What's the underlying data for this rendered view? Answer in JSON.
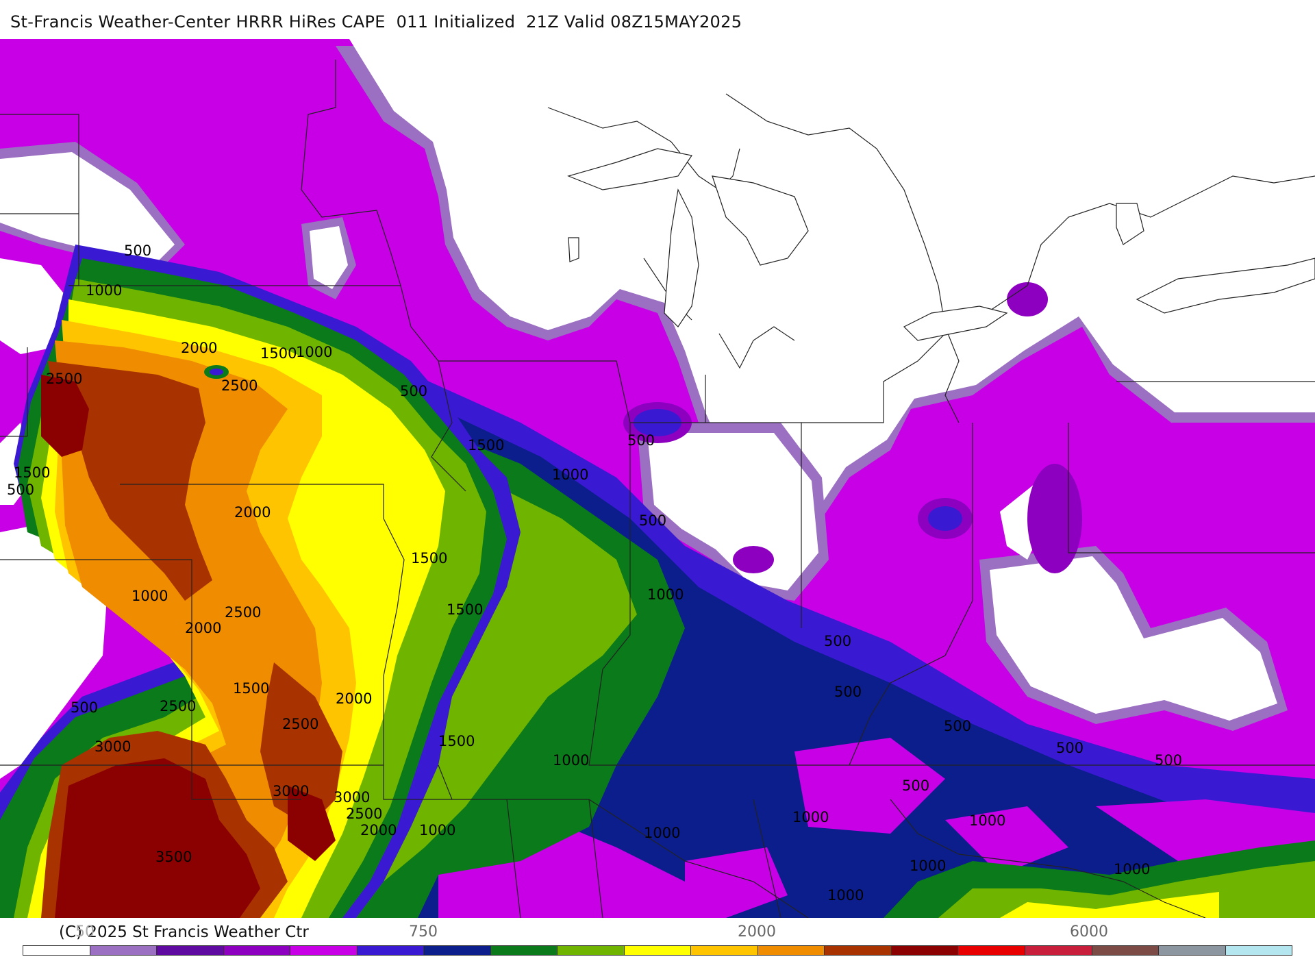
{
  "title": "St-Francis Weather-Center HRRR HiRes CAPE  011 Initialized  21Z Valid 08Z15MAY2025",
  "legend": {
    "copyright": "(C) 2025 St Francis Weather Ctr",
    "ticks": [
      {
        "text": "50",
        "faint": true
      },
      {
        "text": "750",
        "faint": false
      },
      {
        "text": "2000",
        "faint": false
      },
      {
        "text": "6000",
        "faint": false
      }
    ],
    "colors": [
      "#ffffff",
      "#9b6fc1",
      "#5f0aa0",
      "#8d00c0",
      "#c800e6",
      "#3a19d2",
      "#0b1e8c",
      "#0a7a1a",
      "#6fb500",
      "#ffff00",
      "#ffc400",
      "#f08c00",
      "#a83200",
      "#8b0000",
      "#e80000",
      "#c81e3c",
      "#7d4b46",
      "#8c96a0",
      "#b4e6f0"
    ]
  },
  "contour_labels": [
    "500",
    "1000",
    "1000",
    "2000",
    "1500",
    "1000",
    "2500",
    "2500",
    "500",
    "1500",
    "500",
    "2000",
    "1500",
    "1000",
    "500",
    "1500",
    "1500",
    "1000",
    "1000",
    "2000",
    "2500",
    "500",
    "500",
    "1500",
    "500",
    "2500",
    "2000",
    "2500",
    "1500",
    "3000",
    "3000",
    "2500",
    "2000",
    "1000",
    "1000",
    "500",
    "500",
    "1000",
    "1000",
    "500",
    "3500",
    "1000",
    "1000",
    "500",
    "500",
    "1000"
  ]
}
